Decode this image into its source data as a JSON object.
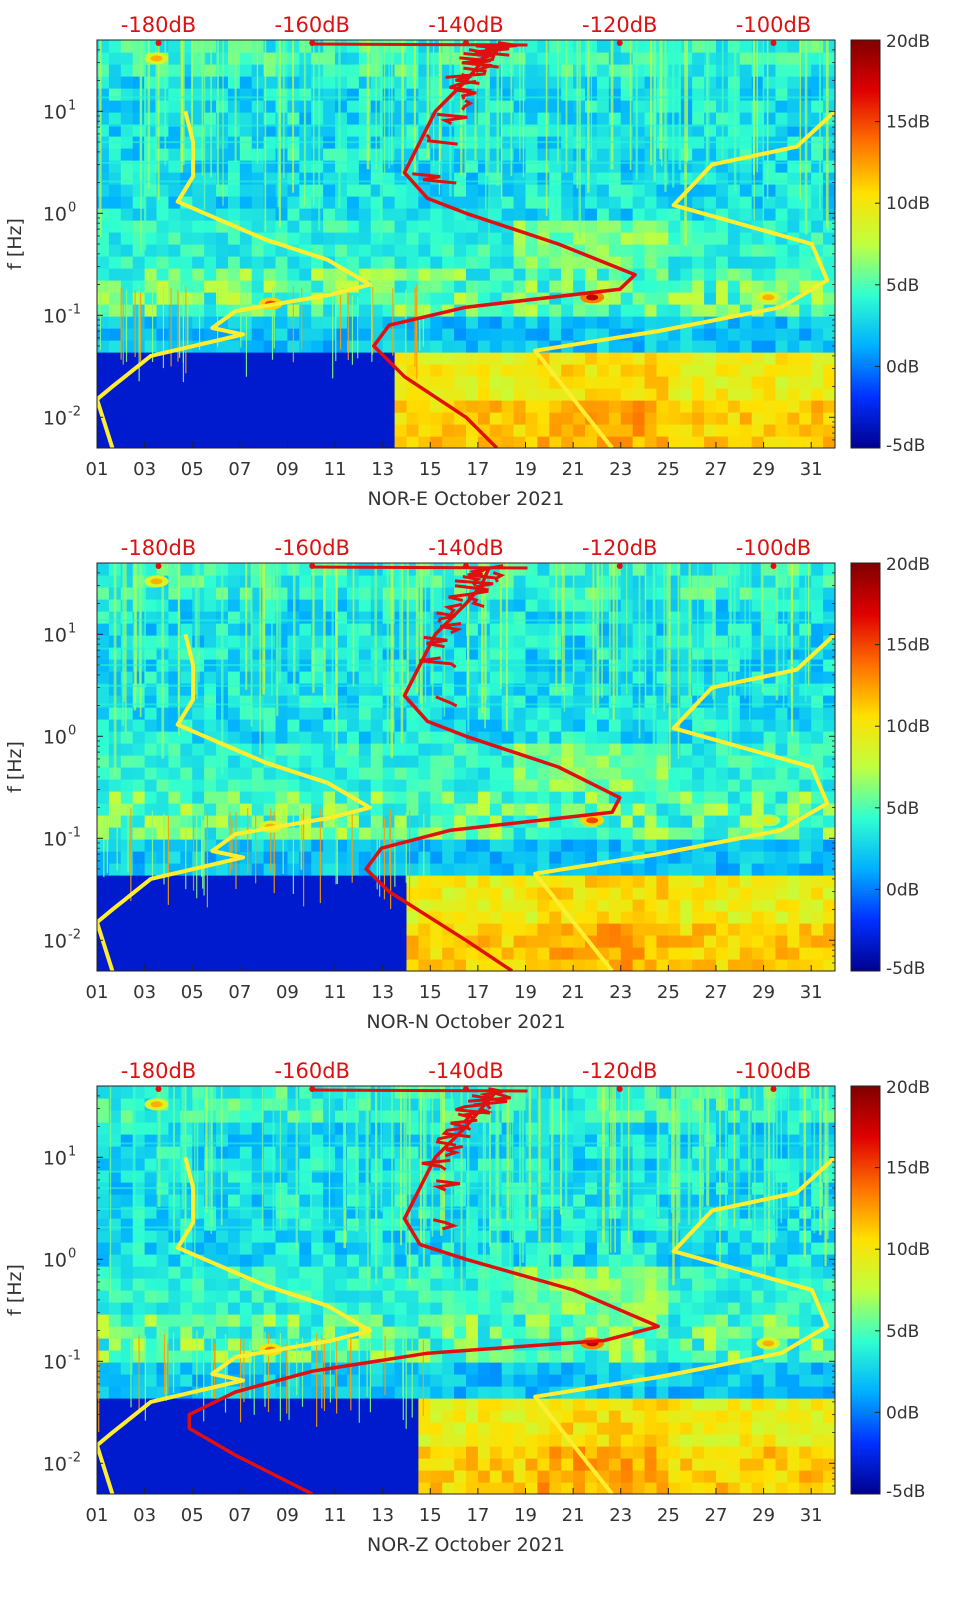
{
  "colors": {
    "spectrogram_scale": [
      "#00008f",
      "#0030ff",
      "#00b0ff",
      "#30ffd0",
      "#c0ff40",
      "#ffe000",
      "#ff7000",
      "#e00000",
      "#800000"
    ],
    "model_curves": "#ffee30",
    "noise_psd": "#e01010",
    "top_axis_labels": "#dd1111",
    "axis_text": "#333333"
  },
  "chart_data": [
    {
      "type": "heatmap",
      "xlabel": "NOR-E October 2021",
      "ylabel": "f [Hz]",
      "x_ticks": [
        "01",
        "03",
        "05",
        "07",
        "09",
        "11",
        "13",
        "15",
        "17",
        "19",
        "21",
        "23",
        "25",
        "27",
        "29",
        "31"
      ],
      "xlim": [
        1,
        32
      ],
      "y_scale": "log",
      "ylim": [
        0.005,
        50
      ],
      "y_ticks": [
        {
          "exp": "-2",
          "value": 0.01
        },
        {
          "exp": "-1",
          "value": 0.1
        },
        {
          "exp": "0",
          "value": 1
        },
        {
          "exp": "1",
          "value": 10
        }
      ],
      "top_axis": {
        "labels": [
          "-180dB",
          "-160dB",
          "-140dB",
          "-120dB",
          "-100dB"
        ],
        "values": [
          -180,
          -160,
          -140,
          -120,
          -100
        ],
        "lim": [
          -188,
          -92
        ]
      },
      "colorbar": {
        "labels": [
          "20dB",
          "15dB",
          "10dB",
          "5dB",
          "0dB",
          "-5dB"
        ],
        "values": [
          20,
          15,
          10,
          5,
          0,
          -5
        ],
        "lim": [
          -5,
          20
        ]
      },
      "model_curves": [
        {
          "points": [
            [
              -176.5,
              10
            ],
            [
              -175.5,
              5
            ],
            [
              -175.5,
              2.3
            ],
            [
              -177.5,
              1.3
            ],
            [
              -166,
              0.55
            ],
            [
              -158,
              0.35
            ],
            [
              -152.5,
              0.2
            ],
            [
              -157.5,
              0.16
            ],
            [
              -170,
              0.11
            ],
            [
              -173,
              0.075
            ],
            [
              -169,
              0.065
            ],
            [
              -181,
              0.04
            ],
            [
              -186,
              0.02
            ],
            [
              -188,
              0.015
            ],
            [
              -186,
              0.005
            ]
          ]
        },
        {
          "points": [
            [
              -92,
              10
            ],
            [
              -97,
              4.5
            ],
            [
              -108,
              3
            ],
            [
              -113,
              1.2
            ],
            [
              -95,
              0.5
            ],
            [
              -93,
              0.22
            ],
            [
              -99,
              0.12
            ],
            [
              -115,
              0.07
            ],
            [
              -131,
              0.045
            ],
            [
              -121,
              0.005
            ]
          ]
        }
      ],
      "noise_psd": {
        "points": [
          [
            -137,
            45
          ],
          [
            -138,
            30
          ],
          [
            -140,
            20
          ],
          [
            -144,
            10
          ],
          [
            -146,
            5
          ],
          [
            -148,
            2.5
          ],
          [
            -145,
            1.4
          ],
          [
            -140,
            1
          ],
          [
            -128,
            0.5
          ],
          [
            -118,
            0.25
          ],
          [
            -120,
            0.18
          ],
          [
            -140,
            0.12
          ],
          [
            -150,
            0.08
          ],
          [
            -152,
            0.05
          ],
          [
            -148,
            0.025
          ],
          [
            -140,
            0.01
          ],
          [
            -136,
            0.005
          ]
        ]
      },
      "spectrogram": {
        "hot_spots": [
          {
            "day": 3.5,
            "f": 33,
            "db": 12
          },
          {
            "day": 8.3,
            "f": 0.13,
            "db": 15
          },
          {
            "day": 21.8,
            "f": 0.15,
            "db": 18
          },
          {
            "day": 29.2,
            "f": 0.15,
            "db": 12
          }
        ]
      }
    },
    {
      "type": "heatmap",
      "xlabel": "NOR-N October 2021",
      "ylabel": "f [Hz]",
      "x_ticks": [
        "01",
        "03",
        "05",
        "07",
        "09",
        "11",
        "13",
        "15",
        "17",
        "19",
        "21",
        "23",
        "25",
        "27",
        "29",
        "31"
      ],
      "xlim": [
        1,
        32
      ],
      "y_scale": "log",
      "ylim": [
        0.005,
        50
      ],
      "y_ticks": [
        {
          "exp": "-2",
          "value": 0.01
        },
        {
          "exp": "-1",
          "value": 0.1
        },
        {
          "exp": "0",
          "value": 1
        },
        {
          "exp": "1",
          "value": 10
        }
      ],
      "top_axis": {
        "labels": [
          "-180dB",
          "-160dB",
          "-140dB",
          "-120dB",
          "-100dB"
        ],
        "values": [
          -180,
          -160,
          -140,
          -120,
          -100
        ],
        "lim": [
          -188,
          -92
        ]
      },
      "colorbar": {
        "labels": [
          "20dB",
          "15dB",
          "10dB",
          "5dB",
          "0dB",
          "-5dB"
        ],
        "values": [
          20,
          15,
          10,
          5,
          0,
          -5
        ],
        "lim": [
          -5,
          20
        ]
      },
      "model_curves": [
        {
          "points": [
            [
              -176.5,
              10
            ],
            [
              -175.5,
              5
            ],
            [
              -175.5,
              2.3
            ],
            [
              -177.5,
              1.3
            ],
            [
              -166,
              0.55
            ],
            [
              -158,
              0.35
            ],
            [
              -152.5,
              0.2
            ],
            [
              -157.5,
              0.16
            ],
            [
              -170,
              0.11
            ],
            [
              -173,
              0.075
            ],
            [
              -169,
              0.065
            ],
            [
              -181,
              0.04
            ],
            [
              -186,
              0.02
            ],
            [
              -188,
              0.015
            ],
            [
              -186,
              0.005
            ]
          ]
        },
        {
          "points": [
            [
              -92,
              10
            ],
            [
              -97,
              4.5
            ],
            [
              -108,
              3
            ],
            [
              -113,
              1.2
            ],
            [
              -95,
              0.5
            ],
            [
              -93,
              0.22
            ],
            [
              -99,
              0.12
            ],
            [
              -115,
              0.07
            ],
            [
              -131,
              0.045
            ],
            [
              -121,
              0.005
            ]
          ]
        }
      ],
      "noise_psd": {
        "points": [
          [
            -137,
            45
          ],
          [
            -138,
            30
          ],
          [
            -140,
            20
          ],
          [
            -144,
            10
          ],
          [
            -146,
            5
          ],
          [
            -148,
            2.5
          ],
          [
            -145,
            1.4
          ],
          [
            -140,
            1
          ],
          [
            -128,
            0.5
          ],
          [
            -120,
            0.25
          ],
          [
            -121,
            0.18
          ],
          [
            -142,
            0.12
          ],
          [
            -151,
            0.08
          ],
          [
            -153,
            0.05
          ],
          [
            -150,
            0.03
          ],
          [
            -140,
            0.01
          ],
          [
            -134,
            0.005
          ]
        ]
      },
      "spectrogram": {
        "hot_spots": [
          {
            "day": 3.5,
            "f": 33,
            "db": 12
          },
          {
            "day": 8.3,
            "f": 0.13,
            "db": 12
          },
          {
            "day": 21.8,
            "f": 0.15,
            "db": 15
          },
          {
            "day": 29.2,
            "f": 0.15,
            "db": 10
          }
        ]
      }
    },
    {
      "type": "heatmap",
      "xlabel": "NOR-Z October 2021",
      "ylabel": "f [Hz]",
      "x_ticks": [
        "01",
        "03",
        "05",
        "07",
        "09",
        "11",
        "13",
        "15",
        "17",
        "19",
        "21",
        "23",
        "25",
        "27",
        "29",
        "31"
      ],
      "xlim": [
        1,
        32
      ],
      "y_scale": "log",
      "ylim": [
        0.005,
        50
      ],
      "y_ticks": [
        {
          "exp": "-2",
          "value": 0.01
        },
        {
          "exp": "-1",
          "value": 0.1
        },
        {
          "exp": "0",
          "value": 1
        },
        {
          "exp": "1",
          "value": 10
        }
      ],
      "top_axis": {
        "labels": [
          "-180dB",
          "-160dB",
          "-140dB",
          "-120dB",
          "-100dB"
        ],
        "values": [
          -180,
          -160,
          -140,
          -120,
          -100
        ],
        "lim": [
          -188,
          -92
        ]
      },
      "colorbar": {
        "labels": [
          "20dB",
          "15dB",
          "10dB",
          "5dB",
          "0dB",
          "-5dB"
        ],
        "values": [
          20,
          15,
          10,
          5,
          0,
          -5
        ],
        "lim": [
          -5,
          20
        ]
      },
      "model_curves": [
        {
          "points": [
            [
              -176.5,
              10
            ],
            [
              -175.5,
              5
            ],
            [
              -175.5,
              2.3
            ],
            [
              -177.5,
              1.3
            ],
            [
              -166,
              0.55
            ],
            [
              -158,
              0.35
            ],
            [
              -152.5,
              0.2
            ],
            [
              -157.5,
              0.16
            ],
            [
              -170,
              0.11
            ],
            [
              -173,
              0.075
            ],
            [
              -169,
              0.065
            ],
            [
              -181,
              0.04
            ],
            [
              -186,
              0.02
            ],
            [
              -188,
              0.015
            ],
            [
              -186,
              0.005
            ]
          ]
        },
        {
          "points": [
            [
              -92,
              10
            ],
            [
              -97,
              4.5
            ],
            [
              -108,
              3
            ],
            [
              -113,
              1.2
            ],
            [
              -95,
              0.5
            ],
            [
              -93,
              0.22
            ],
            [
              -99,
              0.12
            ],
            [
              -115,
              0.07
            ],
            [
              -131,
              0.045
            ],
            [
              -121,
              0.005
            ]
          ]
        }
      ],
      "noise_psd": {
        "points": [
          [
            -136,
            45
          ],
          [
            -138,
            30
          ],
          [
            -140,
            20
          ],
          [
            -144,
            10
          ],
          [
            -146,
            5
          ],
          [
            -148,
            2.5
          ],
          [
            -146,
            1.4
          ],
          [
            -140,
            1
          ],
          [
            -126,
            0.5
          ],
          [
            -115,
            0.22
          ],
          [
            -122,
            0.16
          ],
          [
            -145,
            0.12
          ],
          [
            -160,
            0.08
          ],
          [
            -170,
            0.05
          ],
          [
            -176,
            0.03
          ],
          [
            -176,
            0.022
          ],
          [
            -170,
            0.012
          ],
          [
            -160,
            0.005
          ]
        ]
      },
      "spectrogram": {
        "hot_spots": [
          {
            "day": 3.5,
            "f": 33,
            "db": 12
          },
          {
            "day": 8.3,
            "f": 0.13,
            "db": 14
          },
          {
            "day": 21.8,
            "f": 0.15,
            "db": 18
          },
          {
            "day": 29.2,
            "f": 0.15,
            "db": 12
          }
        ]
      }
    }
  ]
}
